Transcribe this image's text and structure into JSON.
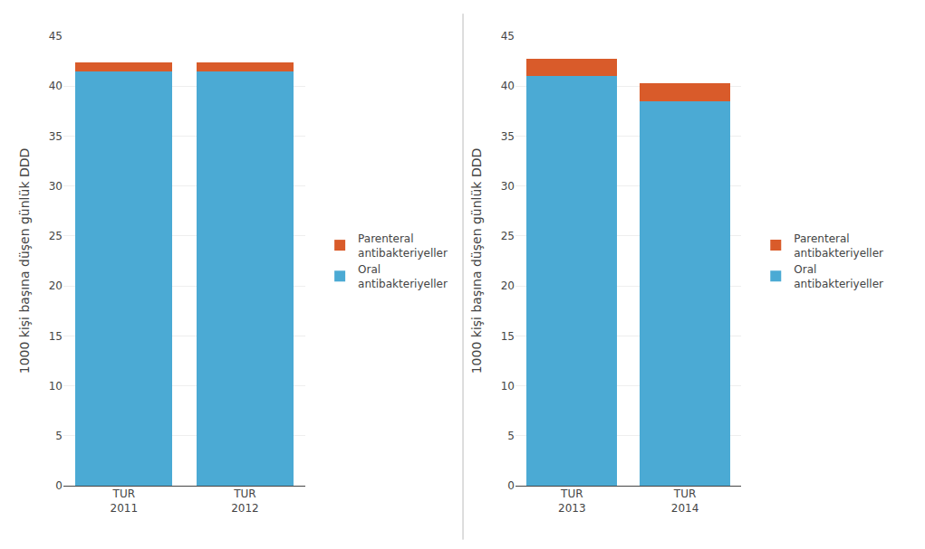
{
  "chart_data": [
    {
      "type": "bar",
      "stacked": true,
      "categories": [
        "TUR\n2011",
        "TUR\n2012"
      ],
      "series": [
        {
          "name": "Oral\nantibakteriyeller",
          "color": "#4BAAD4",
          "values": [
            41.5,
            41.5
          ]
        },
        {
          "name": "Parenteral\nantibakteriyeller",
          "color": "#D95B2A",
          "values": [
            0.9,
            0.9
          ]
        }
      ],
      "ylabel": "1000 kişi başına düşen günlük DDD",
      "ylim": [
        0,
        45
      ],
      "yticks": [
        0,
        5,
        10,
        15,
        20,
        25,
        30,
        35,
        40,
        45
      ],
      "grid": true,
      "legend": "right"
    },
    {
      "type": "bar",
      "stacked": true,
      "categories": [
        "TUR\n2013",
        "TUR\n2014"
      ],
      "series": [
        {
          "name": "Oral\nantibakteriyeller",
          "color": "#4BAAD4",
          "values": [
            41.0,
            38.5
          ]
        },
        {
          "name": "Parenteral\nantibakteriyeller",
          "color": "#D95B2A",
          "values": [
            1.7,
            1.8
          ]
        }
      ],
      "ylabel": "1000 kişi başına düşen günlük DDD",
      "ylim": [
        0,
        45
      ],
      "yticks": [
        0,
        5,
        10,
        15,
        20,
        25,
        30,
        35,
        40,
        45
      ],
      "grid": true,
      "legend": "right"
    }
  ]
}
